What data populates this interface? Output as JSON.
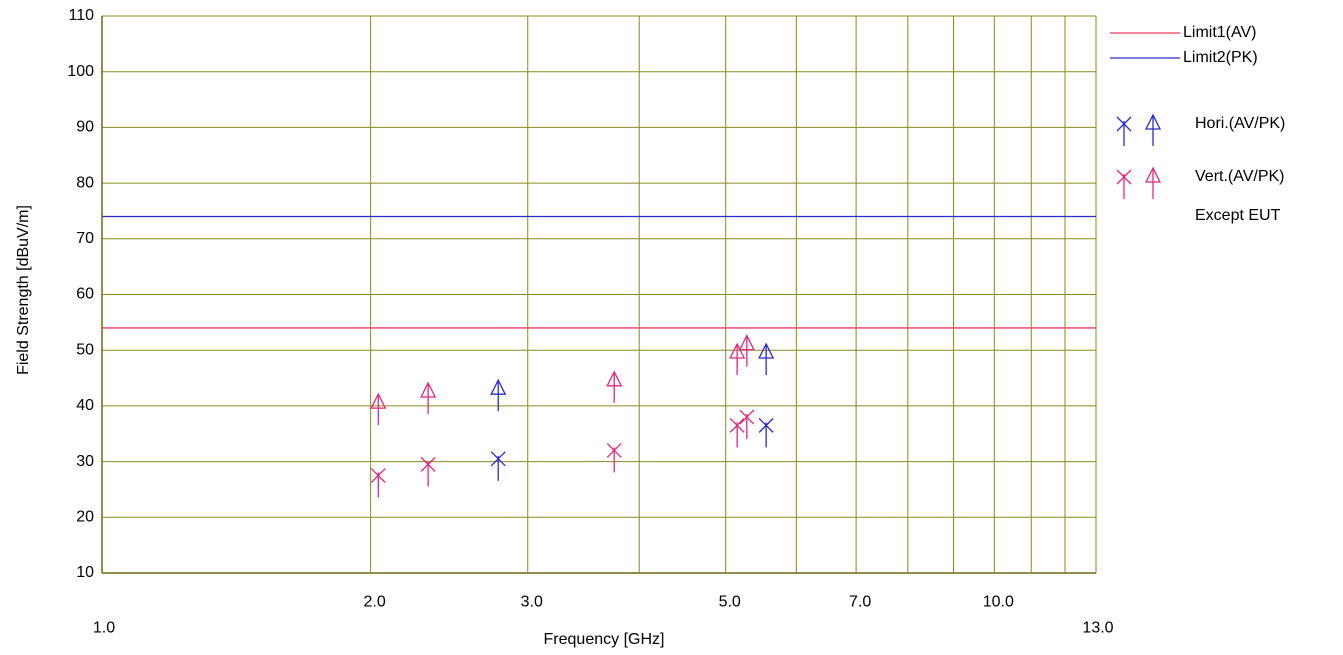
{
  "chart_data": {
    "type": "scatter",
    "xlabel": "Frequency [GHz]",
    "ylabel": "Field Strength [dBuV/m]",
    "x_scale": "log",
    "xlim": [
      1.0,
      13.0
    ],
    "ylim": [
      10,
      110
    ],
    "grid": true,
    "legend_position": "right",
    "y_ticks": [
      "10",
      "20",
      "30",
      "40",
      "50",
      "60",
      "70",
      "80",
      "90",
      "100",
      "110"
    ],
    "y_tick_values": [
      10,
      20,
      30,
      40,
      50,
      60,
      70,
      80,
      90,
      100,
      110
    ],
    "x_ticks": [
      "1.0",
      "2.0",
      "3.0",
      "5.0",
      "7.0",
      "10.0",
      "13.0"
    ],
    "x_tick_values": [
      1.0,
      2.0,
      3.0,
      5.0,
      7.0,
      10.0,
      13.0
    ],
    "x_gridlines": [
      1.0,
      2.0,
      3.0,
      4.0,
      5.0,
      6.0,
      7.0,
      8.0,
      9.0,
      10.0,
      11.0,
      12.0,
      13.0
    ],
    "limits": [
      {
        "name": "Limit1(AV)",
        "value": 54,
        "color": "#ee3a5e"
      },
      {
        "name": "Limit2(PK)",
        "value": 74,
        "color": "#2b2bcc"
      }
    ],
    "series": [
      {
        "name": "Hori.(AV/PK)",
        "color": "#2b2bcc",
        "marker": "x-arrow",
        "points": [
          {
            "x": 2.78,
            "y": 30.5
          },
          {
            "x": 5.55,
            "y": 36.5
          }
        ]
      },
      {
        "name": "Hori.(AV/PK)",
        "color": "#2b2bcc",
        "marker": "triangle-arrow",
        "points": [
          {
            "x": 2.78,
            "y": 43
          },
          {
            "x": 5.55,
            "y": 49.5
          }
        ]
      },
      {
        "name": "Vert.(AV/PK)",
        "color": "#e0287c",
        "marker": "x-arrow",
        "points": [
          {
            "x": 2.04,
            "y": 27.5
          },
          {
            "x": 2.32,
            "y": 29.5
          },
          {
            "x": 3.75,
            "y": 32
          },
          {
            "x": 5.15,
            "y": 36.5
          },
          {
            "x": 5.28,
            "y": 38
          }
        ]
      },
      {
        "name": "Vert.(AV/PK)",
        "color": "#e0287c",
        "marker": "triangle-arrow",
        "points": [
          {
            "x": 2.04,
            "y": 40.5
          },
          {
            "x": 2.32,
            "y": 42.5
          },
          {
            "x": 3.75,
            "y": 44.5
          },
          {
            "x": 5.15,
            "y": 49.5
          },
          {
            "x": 5.28,
            "y": 51
          }
        ]
      }
    ],
    "legend": [
      {
        "label": "Limit1(AV)",
        "kind": "line",
        "color": "#ee3a5e"
      },
      {
        "label": "Limit2(PK)",
        "kind": "line",
        "color": "#2b2bcc"
      },
      {
        "label": "Hori.(AV/PK)",
        "kind": "markers",
        "color": "#2b2bcc"
      },
      {
        "label": "Vert.(AV/PK)",
        "kind": "markers",
        "color": "#e0287c"
      },
      {
        "label": "Except EUT",
        "kind": "text"
      }
    ],
    "grid_color": "#8a8a1e"
  }
}
